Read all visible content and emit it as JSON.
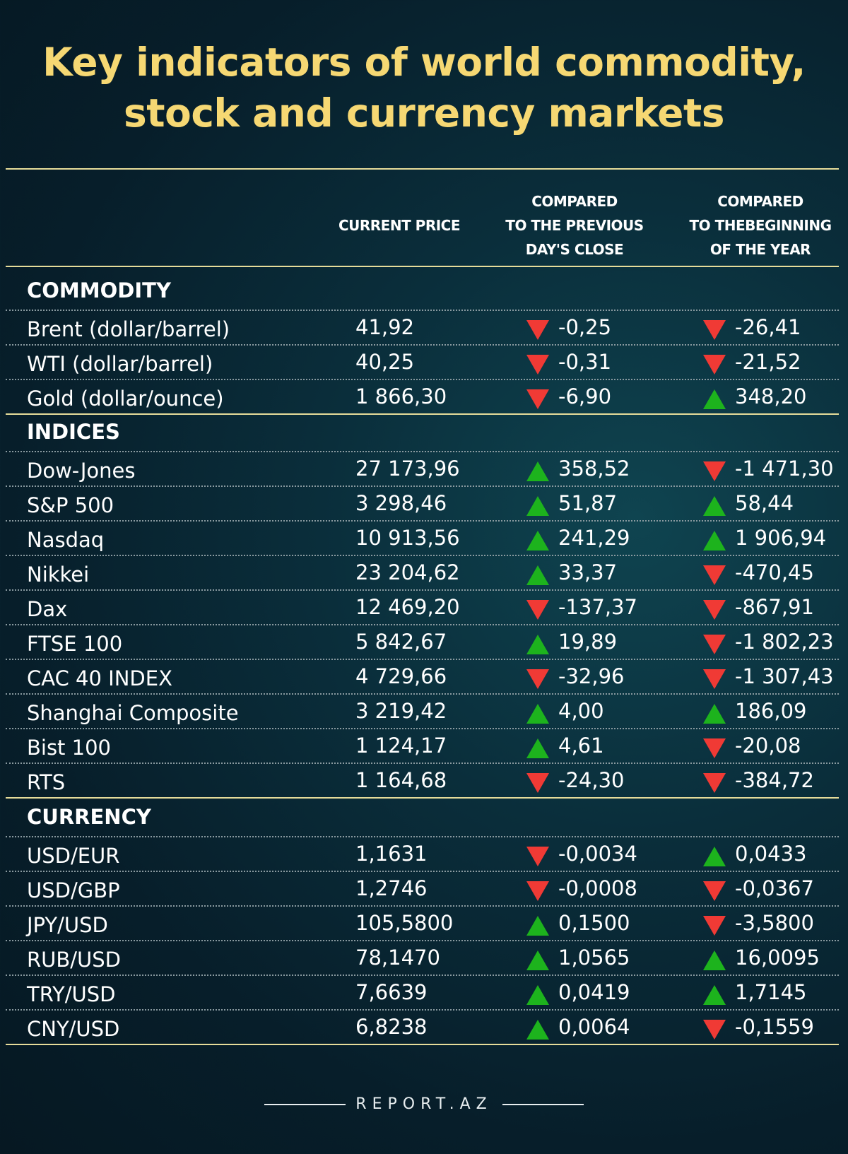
{
  "title": {
    "line1": "Key indicators of world commodity,",
    "line2": "stock and currency markets"
  },
  "header": {
    "current_price": "CURRENT PRICE",
    "prev_day": [
      "COMPARED",
      "TO THE PREVIOUS",
      "DAY'S CLOSE"
    ],
    "year_start": [
      "COMPARED",
      "TO THEBEGINNING",
      "OF THE YEAR"
    ]
  },
  "colors": {
    "title": "#f6d873",
    "up": "#1db31d",
    "down": "#f03a35",
    "rule": "#e6dc9a"
  },
  "sections": [
    {
      "name": "COMMODITY",
      "rows": [
        {
          "label": "Brent (dollar/barrel)",
          "price": "41,92",
          "prev_dir": "down",
          "prev": "-0,25",
          "year_dir": "down",
          "year": "-26,41"
        },
        {
          "label": "WTI (dollar/barrel)",
          "price": "40,25",
          "prev_dir": "down",
          "prev": "-0,31",
          "year_dir": "down",
          "year": "-21,52"
        },
        {
          "label": "Gold (dollar/ounce)",
          "price": "1 866,30",
          "prev_dir": "down",
          "prev": "-6,90",
          "year_dir": "up",
          "year": "348,20"
        }
      ]
    },
    {
      "name": "INDICES",
      "rows": [
        {
          "label": "Dow-Jones",
          "price": "27 173,96",
          "prev_dir": "up",
          "prev": "358,52",
          "year_dir": "down",
          "year": "-1 471,30"
        },
        {
          "label": "S&P 500",
          "price": "3 298,46",
          "prev_dir": "up",
          "prev": "51,87",
          "year_dir": "up",
          "year": "58,44"
        },
        {
          "label": "Nasdaq",
          "price": "10 913,56",
          "prev_dir": "up",
          "prev": "241,29",
          "year_dir": "up",
          "year": "1 906,94"
        },
        {
          "label": "Nikkei",
          "price": "23 204,62",
          "prev_dir": "up",
          "prev": "33,37",
          "year_dir": "down",
          "year": "-470,45"
        },
        {
          "label": "Dax",
          "price": "12 469,20",
          "prev_dir": "down",
          "prev": "-137,37",
          "year_dir": "down",
          "year": "-867,91"
        },
        {
          "label": "FTSE 100",
          "price": "5 842,67",
          "prev_dir": "up",
          "prev": "19,89",
          "year_dir": "down",
          "year": "-1 802,23"
        },
        {
          "label": "CAC 40 INDEX",
          "price": "4 729,66",
          "prev_dir": "down",
          "prev": "-32,96",
          "year_dir": "down",
          "year": "-1 307,43"
        },
        {
          "label": "Shanghai Composite",
          "price": "3 219,42",
          "prev_dir": "up",
          "prev": "4,00",
          "year_dir": "up",
          "year": "186,09"
        },
        {
          "label": "Bist 100",
          "price": "1 124,17",
          "prev_dir": "up",
          "prev": "4,61",
          "year_dir": "down",
          "year": "-20,08"
        },
        {
          "label": "RTS",
          "price": "1 164,68",
          "prev_dir": "down",
          "prev": "-24,30",
          "year_dir": "down",
          "year": "-384,72"
        }
      ]
    },
    {
      "name": "CURRENCY",
      "rows": [
        {
          "label": "USD/EUR",
          "price": "1,1631",
          "prev_dir": "down",
          "prev": "-0,0034",
          "year_dir": "up",
          "year": "0,0433"
        },
        {
          "label": "USD/GBP",
          "price": "1,2746",
          "prev_dir": "down",
          "prev": "-0,0008",
          "year_dir": "down",
          "year": "-0,0367"
        },
        {
          "label": "JPY/USD",
          "price": "105,5800",
          "prev_dir": "up",
          "prev": "0,1500",
          "year_dir": "down",
          "year": "-3,5800"
        },
        {
          "label": "RUB/USD",
          "price": "78,1470",
          "prev_dir": "up",
          "prev": "1,0565",
          "year_dir": "up",
          "year": "16,0095"
        },
        {
          "label": "TRY/USD",
          "price": "7,6639",
          "prev_dir": "up",
          "prev": "0,0419",
          "year_dir": "up",
          "year": "1,7145"
        },
        {
          "label": "CNY/USD",
          "price": "6,8238",
          "prev_dir": "up",
          "prev": "0,0064",
          "year_dir": "down",
          "year": "-0,1559"
        }
      ]
    }
  ],
  "footer": {
    "brand": "REPORT.AZ"
  }
}
